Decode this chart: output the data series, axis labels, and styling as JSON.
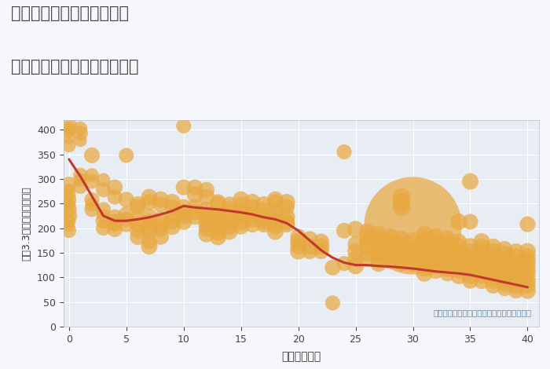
{
  "title_line1": "神奈川県横浜市中区長者町",
  "title_line2": "築年数別中古マンション価格",
  "xlabel": "築年数（年）",
  "ylabel": "坪（3.3㎡）単価（万円）",
  "annotation": "円の大きさは、取引のあった物件面積を示す",
  "fig_bg_color": "#f5f7fa",
  "plot_bg_color": "#e8edf4",
  "scatter_color": "#E8A840",
  "scatter_alpha": 0.72,
  "line_color": "#c0392b",
  "line_width": 2.2,
  "xlim": [
    -0.5,
    41
  ],
  "ylim": [
    0,
    420
  ],
  "xticks": [
    0,
    5,
    10,
    15,
    20,
    25,
    30,
    35,
    40
  ],
  "yticks": [
    0,
    50,
    100,
    150,
    200,
    250,
    300,
    350,
    400
  ],
  "scatter_points": [
    [
      0,
      410,
      200
    ],
    [
      0,
      403,
      150
    ],
    [
      0,
      395,
      120
    ],
    [
      0,
      383,
      130
    ],
    [
      0,
      368,
      160
    ],
    [
      0,
      290,
      180
    ],
    [
      0,
      278,
      130
    ],
    [
      0,
      268,
      160
    ],
    [
      0,
      258,
      180
    ],
    [
      0,
      248,
      160
    ],
    [
      0,
      238,
      200
    ],
    [
      0,
      225,
      220
    ],
    [
      0,
      215,
      160
    ],
    [
      0,
      205,
      130
    ],
    [
      0,
      195,
      180
    ],
    [
      1,
      403,
      160
    ],
    [
      1,
      393,
      190
    ],
    [
      1,
      378,
      140
    ],
    [
      1,
      308,
      180
    ],
    [
      1,
      298,
      160
    ],
    [
      1,
      285,
      190
    ],
    [
      2,
      348,
      210
    ],
    [
      2,
      308,
      160
    ],
    [
      2,
      295,
      190
    ],
    [
      2,
      258,
      190
    ],
    [
      2,
      248,
      160
    ],
    [
      2,
      238,
      190
    ],
    [
      3,
      298,
      160
    ],
    [
      3,
      278,
      190
    ],
    [
      3,
      238,
      190
    ],
    [
      3,
      225,
      160
    ],
    [
      3,
      215,
      210
    ],
    [
      3,
      200,
      190
    ],
    [
      4,
      283,
      210
    ],
    [
      4,
      263,
      190
    ],
    [
      4,
      223,
      190
    ],
    [
      4,
      213,
      210
    ],
    [
      4,
      208,
      190
    ],
    [
      4,
      198,
      210
    ],
    [
      5,
      348,
      190
    ],
    [
      5,
      258,
      210
    ],
    [
      5,
      228,
      210
    ],
    [
      5,
      218,
      190
    ],
    [
      5,
      208,
      210
    ],
    [
      6,
      248,
      230
    ],
    [
      6,
      243,
      210
    ],
    [
      6,
      218,
      210
    ],
    [
      6,
      208,
      230
    ],
    [
      6,
      195,
      210
    ],
    [
      6,
      182,
      210
    ],
    [
      7,
      263,
      230
    ],
    [
      7,
      253,
      210
    ],
    [
      7,
      223,
      230
    ],
    [
      7,
      213,
      210
    ],
    [
      7,
      203,
      230
    ],
    [
      7,
      193,
      210
    ],
    [
      7,
      173,
      210
    ],
    [
      7,
      163,
      230
    ],
    [
      8,
      258,
      230
    ],
    [
      8,
      248,
      210
    ],
    [
      8,
      218,
      210
    ],
    [
      8,
      208,
      230
    ],
    [
      8,
      198,
      210
    ],
    [
      8,
      183,
      230
    ],
    [
      9,
      253,
      230
    ],
    [
      9,
      243,
      210
    ],
    [
      9,
      223,
      230
    ],
    [
      9,
      213,
      210
    ],
    [
      9,
      203,
      230
    ],
    [
      10,
      408,
      190
    ],
    [
      10,
      283,
      210
    ],
    [
      10,
      243,
      210
    ],
    [
      10,
      233,
      230
    ],
    [
      10,
      223,
      210
    ],
    [
      10,
      213,
      230
    ],
    [
      11,
      283,
      210
    ],
    [
      11,
      268,
      230
    ],
    [
      11,
      243,
      210
    ],
    [
      11,
      233,
      230
    ],
    [
      11,
      223,
      210
    ],
    [
      12,
      278,
      210
    ],
    [
      12,
      263,
      230
    ],
    [
      12,
      238,
      210
    ],
    [
      12,
      228,
      230
    ],
    [
      12,
      218,
      210
    ],
    [
      12,
      208,
      230
    ],
    [
      12,
      198,
      210
    ],
    [
      12,
      188,
      230
    ],
    [
      13,
      253,
      210
    ],
    [
      13,
      248,
      230
    ],
    [
      13,
      228,
      210
    ],
    [
      13,
      218,
      230
    ],
    [
      13,
      213,
      210
    ],
    [
      13,
      200,
      230
    ],
    [
      13,
      190,
      210
    ],
    [
      13,
      182,
      230
    ],
    [
      14,
      248,
      210
    ],
    [
      14,
      238,
      230
    ],
    [
      14,
      223,
      210
    ],
    [
      14,
      213,
      230
    ],
    [
      14,
      203,
      210
    ],
    [
      14,
      193,
      230
    ],
    [
      15,
      258,
      230
    ],
    [
      15,
      248,
      210
    ],
    [
      15,
      233,
      230
    ],
    [
      15,
      223,
      210
    ],
    [
      15,
      213,
      230
    ],
    [
      15,
      203,
      210
    ],
    [
      16,
      253,
      230
    ],
    [
      16,
      243,
      210
    ],
    [
      16,
      228,
      230
    ],
    [
      16,
      218,
      210
    ],
    [
      16,
      208,
      230
    ],
    [
      17,
      248,
      230
    ],
    [
      17,
      238,
      210
    ],
    [
      17,
      223,
      230
    ],
    [
      17,
      213,
      210
    ],
    [
      17,
      208,
      230
    ],
    [
      18,
      258,
      230
    ],
    [
      18,
      253,
      210
    ],
    [
      18,
      233,
      230
    ],
    [
      18,
      223,
      210
    ],
    [
      18,
      213,
      230
    ],
    [
      18,
      203,
      210
    ],
    [
      18,
      193,
      230
    ],
    [
      19,
      253,
      230
    ],
    [
      19,
      243,
      210
    ],
    [
      19,
      223,
      230
    ],
    [
      19,
      213,
      210
    ],
    [
      19,
      208,
      230
    ],
    [
      20,
      183,
      210
    ],
    [
      20,
      173,
      230
    ],
    [
      20,
      163,
      210
    ],
    [
      20,
      153,
      230
    ],
    [
      21,
      178,
      210
    ],
    [
      21,
      163,
      230
    ],
    [
      21,
      153,
      210
    ],
    [
      22,
      173,
      210
    ],
    [
      22,
      163,
      230
    ],
    [
      22,
      153,
      210
    ],
    [
      23,
      48,
      190
    ],
    [
      23,
      120,
      210
    ],
    [
      24,
      355,
      190
    ],
    [
      24,
      195,
      210
    ],
    [
      24,
      128,
      190
    ],
    [
      25,
      198,
      230
    ],
    [
      25,
      168,
      210
    ],
    [
      25,
      153,
      230
    ],
    [
      25,
      138,
      210
    ],
    [
      25,
      123,
      230
    ],
    [
      26,
      193,
      230
    ],
    [
      26,
      183,
      230
    ],
    [
      26,
      173,
      210
    ],
    [
      26,
      163,
      230
    ],
    [
      26,
      148,
      210
    ],
    [
      26,
      138,
      230
    ],
    [
      27,
      188,
      230
    ],
    [
      27,
      178,
      210
    ],
    [
      27,
      168,
      230
    ],
    [
      27,
      158,
      210
    ],
    [
      27,
      148,
      230
    ],
    [
      27,
      138,
      210
    ],
    [
      27,
      128,
      230
    ],
    [
      28,
      183,
      230
    ],
    [
      28,
      173,
      210
    ],
    [
      28,
      163,
      230
    ],
    [
      28,
      153,
      210
    ],
    [
      28,
      143,
      230
    ],
    [
      28,
      133,
      210
    ],
    [
      29,
      263,
      270
    ],
    [
      29,
      253,
      250
    ],
    [
      29,
      243,
      270
    ],
    [
      29,
      178,
      230
    ],
    [
      29,
      168,
      210
    ],
    [
      29,
      158,
      230
    ],
    [
      29,
      148,
      210
    ],
    [
      29,
      138,
      230
    ],
    [
      29,
      128,
      210
    ],
    [
      30,
      205,
      8000
    ],
    [
      30,
      173,
      270
    ],
    [
      30,
      158,
      250
    ],
    [
      30,
      148,
      230
    ],
    [
      30,
      138,
      210
    ],
    [
      30,
      128,
      230
    ],
    [
      31,
      188,
      230
    ],
    [
      31,
      178,
      210
    ],
    [
      31,
      168,
      230
    ],
    [
      31,
      158,
      210
    ],
    [
      31,
      148,
      230
    ],
    [
      31,
      138,
      210
    ],
    [
      31,
      128,
      230
    ],
    [
      31,
      118,
      210
    ],
    [
      31,
      108,
      230
    ],
    [
      32,
      183,
      230
    ],
    [
      32,
      173,
      210
    ],
    [
      32,
      163,
      230
    ],
    [
      32,
      153,
      210
    ],
    [
      32,
      143,
      230
    ],
    [
      32,
      133,
      210
    ],
    [
      32,
      123,
      230
    ],
    [
      32,
      113,
      210
    ],
    [
      33,
      178,
      230
    ],
    [
      33,
      168,
      210
    ],
    [
      33,
      158,
      230
    ],
    [
      33,
      148,
      210
    ],
    [
      33,
      138,
      230
    ],
    [
      33,
      128,
      210
    ],
    [
      33,
      118,
      230
    ],
    [
      33,
      108,
      210
    ],
    [
      34,
      213,
      230
    ],
    [
      34,
      173,
      210
    ],
    [
      34,
      163,
      230
    ],
    [
      34,
      153,
      210
    ],
    [
      34,
      143,
      230
    ],
    [
      34,
      133,
      210
    ],
    [
      34,
      123,
      230
    ],
    [
      34,
      113,
      210
    ],
    [
      34,
      103,
      230
    ],
    [
      35,
      295,
      230
    ],
    [
      35,
      213,
      210
    ],
    [
      35,
      163,
      230
    ],
    [
      35,
      153,
      210
    ],
    [
      35,
      143,
      230
    ],
    [
      35,
      133,
      210
    ],
    [
      35,
      123,
      230
    ],
    [
      35,
      113,
      210
    ],
    [
      35,
      103,
      230
    ],
    [
      35,
      93,
      210
    ],
    [
      36,
      173,
      230
    ],
    [
      36,
      163,
      210
    ],
    [
      36,
      153,
      230
    ],
    [
      36,
      143,
      210
    ],
    [
      36,
      133,
      230
    ],
    [
      36,
      123,
      210
    ],
    [
      36,
      113,
      230
    ],
    [
      36,
      103,
      210
    ],
    [
      36,
      93,
      230
    ],
    [
      37,
      163,
      210
    ],
    [
      37,
      153,
      230
    ],
    [
      37,
      143,
      210
    ],
    [
      37,
      133,
      230
    ],
    [
      37,
      123,
      210
    ],
    [
      37,
      113,
      230
    ],
    [
      37,
      103,
      210
    ],
    [
      37,
      93,
      230
    ],
    [
      37,
      83,
      210
    ],
    [
      38,
      158,
      210
    ],
    [
      38,
      148,
      230
    ],
    [
      38,
      138,
      210
    ],
    [
      38,
      128,
      230
    ],
    [
      38,
      118,
      210
    ],
    [
      38,
      108,
      230
    ],
    [
      38,
      98,
      210
    ],
    [
      38,
      88,
      230
    ],
    [
      38,
      78,
      210
    ],
    [
      39,
      153,
      210
    ],
    [
      39,
      143,
      230
    ],
    [
      39,
      133,
      210
    ],
    [
      39,
      123,
      230
    ],
    [
      39,
      113,
      210
    ],
    [
      39,
      103,
      230
    ],
    [
      39,
      93,
      210
    ],
    [
      39,
      83,
      230
    ],
    [
      39,
      73,
      210
    ],
    [
      40,
      208,
      210
    ],
    [
      40,
      153,
      230
    ],
    [
      40,
      143,
      210
    ],
    [
      40,
      133,
      230
    ],
    [
      40,
      123,
      210
    ],
    [
      40,
      113,
      230
    ],
    [
      40,
      103,
      210
    ],
    [
      40,
      93,
      230
    ],
    [
      40,
      83,
      210
    ],
    [
      40,
      73,
      230
    ]
  ],
  "trend_line": [
    [
      0,
      340
    ],
    [
      1,
      305
    ],
    [
      2,
      265
    ],
    [
      3,
      225
    ],
    [
      4,
      215
    ],
    [
      5,
      215
    ],
    [
      6,
      218
    ],
    [
      7,
      222
    ],
    [
      8,
      228
    ],
    [
      9,
      235
    ],
    [
      10,
      245
    ],
    [
      11,
      242
    ],
    [
      12,
      240
    ],
    [
      13,
      238
    ],
    [
      14,
      235
    ],
    [
      15,
      232
    ],
    [
      16,
      228
    ],
    [
      17,
      222
    ],
    [
      18,
      218
    ],
    [
      19,
      210
    ],
    [
      20,
      195
    ],
    [
      21,
      175
    ],
    [
      22,
      155
    ],
    [
      23,
      140
    ],
    [
      24,
      130
    ],
    [
      25,
      125
    ],
    [
      26,
      125
    ],
    [
      27,
      123
    ],
    [
      28,
      122
    ],
    [
      29,
      120
    ],
    [
      30,
      118
    ],
    [
      31,
      115
    ],
    [
      32,
      112
    ],
    [
      33,
      110
    ],
    [
      34,
      108
    ],
    [
      35,
      105
    ],
    [
      36,
      100
    ],
    [
      37,
      95
    ],
    [
      38,
      90
    ],
    [
      39,
      85
    ],
    [
      40,
      80
    ]
  ]
}
